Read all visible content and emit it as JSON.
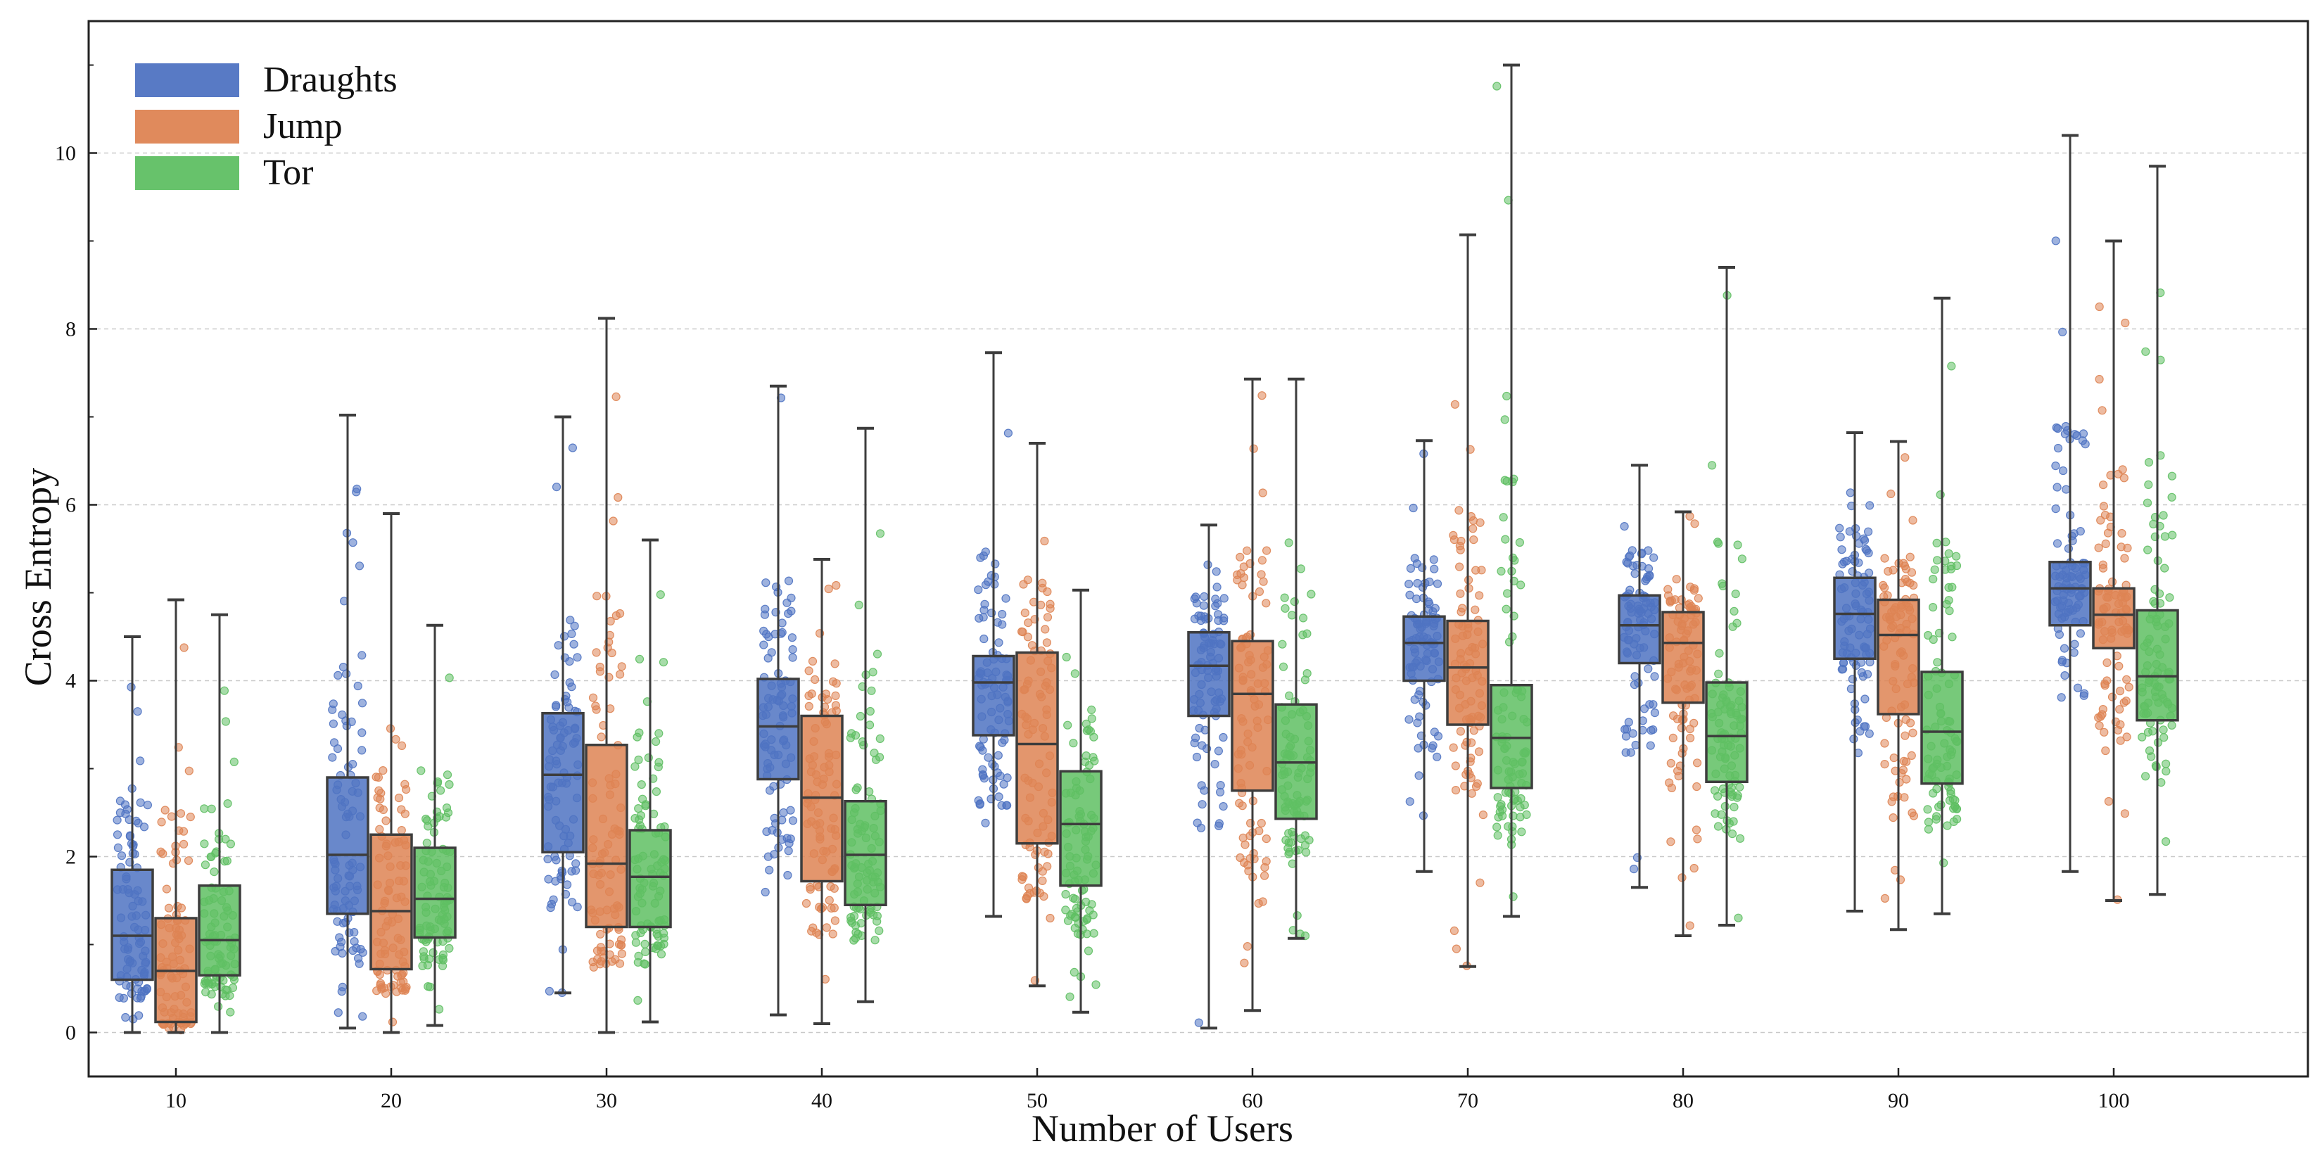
{
  "chart_data": {
    "type": "box",
    "title": "",
    "xlabel": "Number of Users",
    "ylabel": "Cross Entropy",
    "categories": [
      "10",
      "20",
      "30",
      "40",
      "50",
      "60",
      "70",
      "80",
      "90",
      "100"
    ],
    "ylim": [
      -0.5,
      11.5
    ],
    "yticks": [
      0,
      2,
      4,
      6,
      8,
      10
    ],
    "grid": "horizontal-dashed",
    "legend_position": "top-left",
    "colors": {
      "Draughts": "#4f73c2",
      "Jump": "#de8453",
      "Tor": "#5fbf63",
      "box_edge": "#3d3d3d"
    },
    "series": [
      {
        "name": "Draughts",
        "color": "#4f73c2",
        "stats": [
          {
            "min": 0.0,
            "q1": 0.6,
            "median": 1.1,
            "q3": 1.85,
            "max": 4.5
          },
          {
            "min": 0.05,
            "q1": 1.35,
            "median": 2.02,
            "q3": 2.9,
            "max": 7.02
          },
          {
            "min": 0.45,
            "q1": 2.05,
            "median": 2.93,
            "q3": 3.63,
            "max": 7.0
          },
          {
            "min": 0.2,
            "q1": 2.88,
            "median": 3.48,
            "q3": 4.02,
            "max": 7.35
          },
          {
            "min": 1.32,
            "q1": 3.38,
            "median": 3.98,
            "q3": 4.28,
            "max": 7.73
          },
          {
            "min": 0.05,
            "q1": 3.6,
            "median": 4.17,
            "q3": 4.55,
            "max": 5.77
          },
          {
            "min": 1.83,
            "q1": 4.0,
            "median": 4.43,
            "q3": 4.73,
            "max": 6.73
          },
          {
            "min": 1.65,
            "q1": 4.2,
            "median": 4.63,
            "q3": 4.97,
            "max": 6.45
          },
          {
            "min": 1.38,
            "q1": 4.25,
            "median": 4.76,
            "q3": 5.17,
            "max": 6.82
          },
          {
            "min": 1.83,
            "q1": 4.63,
            "median": 5.05,
            "q3": 5.35,
            "max": 10.2
          }
        ]
      },
      {
        "name": "Jump",
        "color": "#de8453",
        "stats": [
          {
            "min": 0.0,
            "q1": 0.12,
            "median": 0.7,
            "q3": 1.3,
            "max": 4.92
          },
          {
            "min": 0.0,
            "q1": 0.72,
            "median": 1.38,
            "q3": 2.25,
            "max": 5.9
          },
          {
            "min": 0.0,
            "q1": 1.2,
            "median": 1.92,
            "q3": 3.27,
            "max": 8.12
          },
          {
            "min": 0.1,
            "q1": 1.72,
            "median": 2.67,
            "q3": 3.6,
            "max": 5.38
          },
          {
            "min": 0.53,
            "q1": 2.15,
            "median": 3.28,
            "q3": 4.32,
            "max": 6.7
          },
          {
            "min": 0.25,
            "q1": 2.75,
            "median": 3.85,
            "q3": 4.45,
            "max": 7.43
          },
          {
            "min": 0.75,
            "q1": 3.5,
            "median": 4.15,
            "q3": 4.68,
            "max": 9.07
          },
          {
            "min": 1.1,
            "q1": 3.75,
            "median": 4.43,
            "q3": 4.78,
            "max": 5.92
          },
          {
            "min": 1.17,
            "q1": 3.62,
            "median": 4.52,
            "q3": 4.92,
            "max": 6.72
          },
          {
            "min": 1.5,
            "q1": 4.37,
            "median": 4.75,
            "q3": 5.05,
            "max": 9.0
          }
        ]
      },
      {
        "name": "Tor",
        "color": "#5fbf63",
        "stats": [
          {
            "min": 0.0,
            "q1": 0.65,
            "median": 1.05,
            "q3": 1.67,
            "max": 4.75
          },
          {
            "min": 0.08,
            "q1": 1.08,
            "median": 1.52,
            "q3": 2.1,
            "max": 4.63
          },
          {
            "min": 0.12,
            "q1": 1.2,
            "median": 1.77,
            "q3": 2.3,
            "max": 5.6
          },
          {
            "min": 0.35,
            "q1": 1.45,
            "median": 2.02,
            "q3": 2.63,
            "max": 6.87
          },
          {
            "min": 0.23,
            "q1": 1.67,
            "median": 2.37,
            "q3": 2.97,
            "max": 5.03
          },
          {
            "min": 1.07,
            "q1": 2.43,
            "median": 3.07,
            "q3": 3.73,
            "max": 7.43
          },
          {
            "min": 1.32,
            "q1": 2.78,
            "median": 3.35,
            "q3": 3.95,
            "max": 11.0
          },
          {
            "min": 1.22,
            "q1": 2.85,
            "median": 3.37,
            "q3": 3.98,
            "max": 8.7
          },
          {
            "min": 1.35,
            "q1": 2.83,
            "median": 3.42,
            "q3": 4.1,
            "max": 8.35
          },
          {
            "min": 1.57,
            "q1": 3.55,
            "median": 4.05,
            "q3": 4.8,
            "max": 9.85
          }
        ]
      }
    ]
  }
}
